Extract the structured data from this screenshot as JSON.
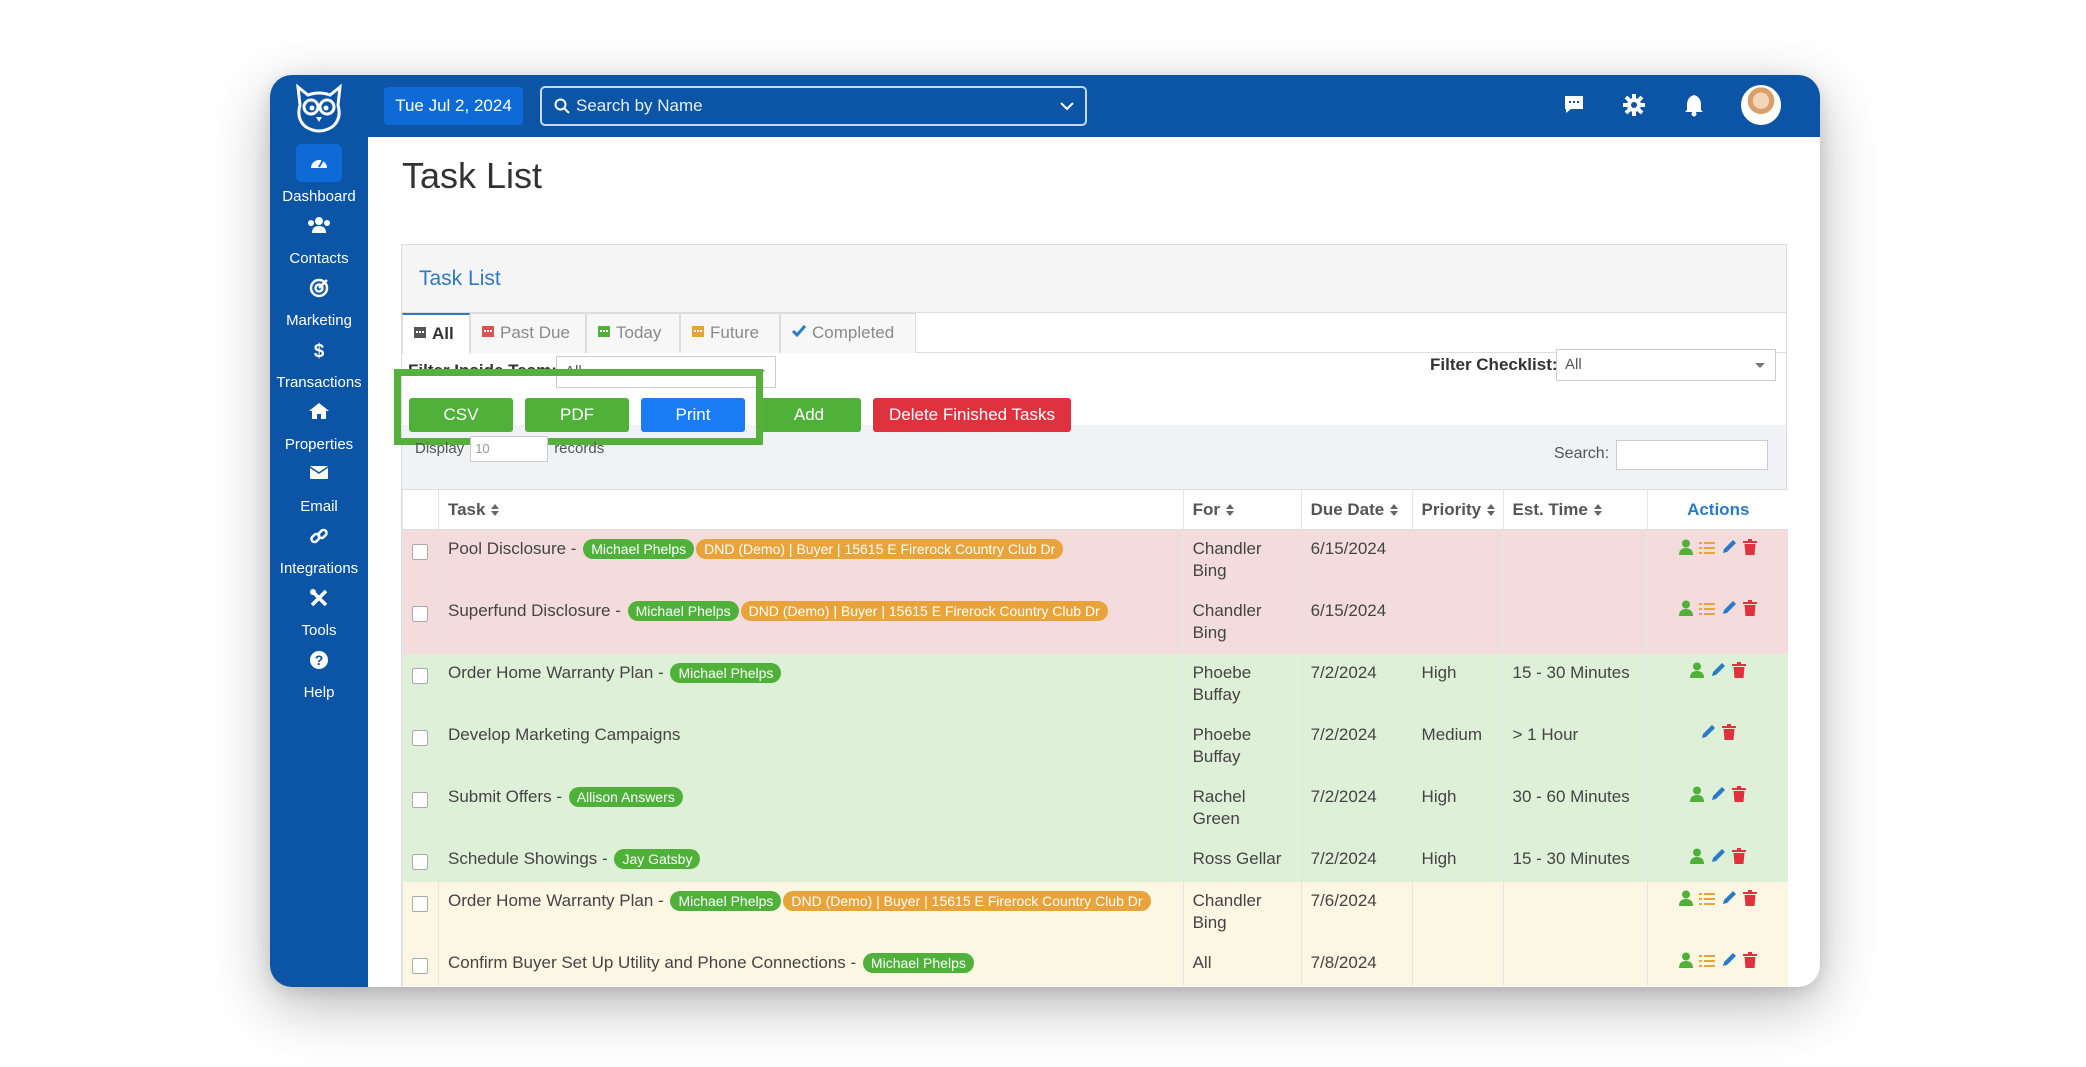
{
  "app": {
    "brand_color": "#0b54a6"
  },
  "sidebar": {
    "items": [
      {
        "label": "Dashboard",
        "icon": "dashboard-gauge-icon",
        "active": true
      },
      {
        "label": "Contacts",
        "icon": "users-icon"
      },
      {
        "label": "Marketing",
        "icon": "target-icon"
      },
      {
        "label": "Transactions",
        "icon": "dollar-icon"
      },
      {
        "label": "Properties",
        "icon": "home-icon"
      },
      {
        "label": "Email",
        "icon": "envelope-icon"
      },
      {
        "label": "Integrations",
        "icon": "link-icon"
      },
      {
        "label": "Tools",
        "icon": "tools-icon"
      },
      {
        "label": "Help",
        "icon": "question-icon"
      }
    ]
  },
  "header": {
    "date": "Tue Jul 2, 2024",
    "search_placeholder": "Search by Name"
  },
  "page": {
    "title": "Task List"
  },
  "panel": {
    "title": "Task List",
    "tabs": [
      {
        "label": "All",
        "icon": "calendar-icon",
        "active": true
      },
      {
        "label": "Past Due",
        "icon": "calendar-icon",
        "color": "#d9534f"
      },
      {
        "label": "Today",
        "icon": "calendar-icon",
        "color": "#4fb13a"
      },
      {
        "label": "Future",
        "icon": "calendar-icon",
        "color": "#e8a33b"
      },
      {
        "label": "Completed",
        "icon": "check-icon",
        "color": "#2a7ac8"
      }
    ],
    "filter_team_label": "Filter Inside Team:",
    "filter_team_value": "All",
    "filter_checklist_label": "Filter Checklist:",
    "filter_checklist_value": "All",
    "buttons": {
      "csv": "CSV",
      "pdf": "PDF",
      "print": "Print",
      "add": "Add",
      "delete_finished": "Delete Finished Tasks"
    },
    "display_label": "Display",
    "display_value": "10",
    "records_label": "records",
    "search_label": "Search:"
  },
  "table": {
    "columns": [
      "Task",
      "For",
      "Due Date",
      "Priority",
      "Est. Time",
      "Actions"
    ],
    "rows": [
      {
        "task": "Pool Disclosure -",
        "tags": [
          {
            "text": "Michael Phelps",
            "color": "green"
          },
          {
            "text": "DND (Demo) | Buyer | 15615 E Firerock Country Club Dr",
            "color": "orange"
          }
        ],
        "for": "Chandler Bing",
        "due": "6/15/2024",
        "priority": "",
        "est": "",
        "status": "past-due",
        "actions": [
          "user-icon",
          "list-icon",
          "pencil-icon",
          "trash-icon"
        ]
      },
      {
        "task": "Superfund Disclosure -",
        "tags": [
          {
            "text": "Michael Phelps",
            "color": "green"
          },
          {
            "text": "DND (Demo) | Buyer | 15615 E Firerock Country Club Dr",
            "color": "orange"
          }
        ],
        "for": "Chandler Bing",
        "due": "6/15/2024",
        "priority": "",
        "est": "",
        "status": "past-due",
        "actions": [
          "user-icon",
          "list-icon",
          "pencil-icon",
          "trash-icon"
        ]
      },
      {
        "task": "Order Home Warranty Plan -",
        "tags": [
          {
            "text": "Michael Phelps",
            "color": "green"
          }
        ],
        "for": "Phoebe Buffay",
        "due": "7/2/2024",
        "priority": "High",
        "est": "15 - 30 Minutes",
        "status": "today",
        "actions": [
          "user-icon",
          "pencil-icon",
          "trash-icon"
        ]
      },
      {
        "task": "Develop Marketing Campaigns",
        "tags": [],
        "for": "Phoebe Buffay",
        "due": "7/2/2024",
        "priority": "Medium",
        "est": "> 1 Hour",
        "status": "today",
        "actions": [
          "pencil-icon",
          "trash-icon"
        ]
      },
      {
        "task": "Submit Offers -",
        "tags": [
          {
            "text": "Allison Answers",
            "color": "green"
          }
        ],
        "for": "Rachel Green",
        "due": "7/2/2024",
        "priority": "High",
        "est": "30 - 60 Minutes",
        "status": "today",
        "actions": [
          "user-icon",
          "pencil-icon",
          "trash-icon"
        ]
      },
      {
        "task": "Schedule Showings -",
        "tags": [
          {
            "text": "Jay Gatsby",
            "color": "green"
          }
        ],
        "for": "Ross Gellar",
        "due": "7/2/2024",
        "priority": "High",
        "est": "15 - 30 Minutes",
        "status": "today",
        "actions": [
          "user-icon",
          "pencil-icon",
          "trash-icon"
        ]
      },
      {
        "task": "Order Home Warranty Plan -",
        "tags": [
          {
            "text": "Michael Phelps",
            "color": "green"
          },
          {
            "text": "DND (Demo) | Buyer | 15615 E Firerock Country Club Dr",
            "color": "orange"
          }
        ],
        "for": "Chandler Bing",
        "due": "7/6/2024",
        "priority": "",
        "est": "",
        "status": "future",
        "actions": [
          "user-icon",
          "list-icon",
          "pencil-icon",
          "trash-icon"
        ]
      },
      {
        "task": "Confirm Buyer Set Up Utility and Phone Connections -",
        "tags": [
          {
            "text": "Michael Phelps",
            "color": "green"
          }
        ],
        "for": "All",
        "due": "7/8/2024",
        "priority": "",
        "est": "",
        "status": "future",
        "actions": [
          "user-icon",
          "list-icon",
          "pencil-icon",
          "trash-icon"
        ]
      }
    ]
  }
}
